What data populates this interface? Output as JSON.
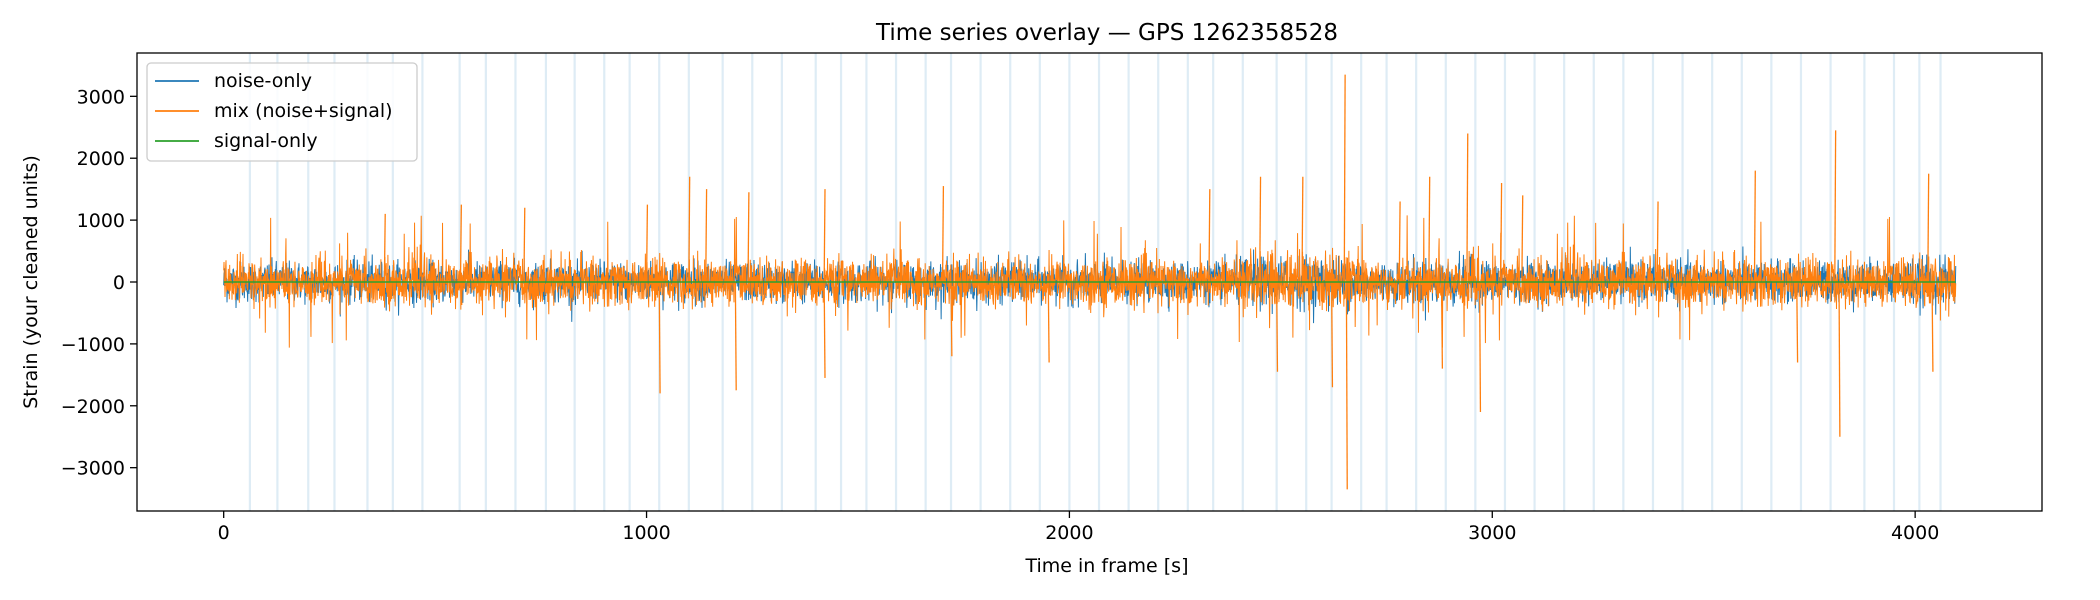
{
  "chart_data": {
    "type": "line",
    "title": "Time series overlay — GPS 1262358528",
    "xlabel": "Time in frame [s]",
    "ylabel": "Strain (your cleaned units)",
    "xlim": [
      -205,
      4300
    ],
    "ylim": [
      -3700,
      3700
    ],
    "xticks": [
      0,
      1000,
      2000,
      3000,
      4000
    ],
    "xtick_labels": [
      "0",
      "1000",
      "2000",
      "3000",
      "4000"
    ],
    "yticks": [
      -3000,
      -2000,
      -1000,
      0,
      1000,
      2000,
      3000
    ],
    "ytick_labels": [
      "−3000",
      "−2000",
      "−1000",
      "0",
      "1000",
      "2000",
      "3000"
    ],
    "grid": false,
    "legend_position": "upper-left",
    "x_range": [
      0,
      4096
    ],
    "series": [
      {
        "name": "noise-only",
        "color": "#1f77b4",
        "envelope_max": 500,
        "note_values": "dense random noise hidden under mix"
      },
      {
        "name": "mix (noise+signal)",
        "color": "#ff7f0e",
        "typical_amplitude": 450,
        "peaks": [
          {
            "x": 380,
            "y": 1100
          },
          {
            "x": 560,
            "y": 1250
          },
          {
            "x": 710,
            "y": 1200
          },
          {
            "x": 1000,
            "y": 1250
          },
          {
            "x": 1030,
            "y": -1800
          },
          {
            "x": 1100,
            "y": 1700
          },
          {
            "x": 1140,
            "y": 1500
          },
          {
            "x": 1210,
            "y": -1750
          },
          {
            "x": 1240,
            "y": 1450
          },
          {
            "x": 1420,
            "y": -1550
          },
          {
            "x": 1420,
            "y": 1500
          },
          {
            "x": 1700,
            "y": 1550
          },
          {
            "x": 1720,
            "y": -1200
          },
          {
            "x": 1950,
            "y": -1300
          },
          {
            "x": 2330,
            "y": 1500
          },
          {
            "x": 2450,
            "y": 1700
          },
          {
            "x": 2490,
            "y": -1450
          },
          {
            "x": 2550,
            "y": 1700
          },
          {
            "x": 2620,
            "y": -1700
          },
          {
            "x": 2650,
            "y": 3350
          },
          {
            "x": 2655,
            "y": -3350
          },
          {
            "x": 2780,
            "y": 1300
          },
          {
            "x": 2850,
            "y": 1700
          },
          {
            "x": 2880,
            "y": -1400
          },
          {
            "x": 2940,
            "y": 2400
          },
          {
            "x": 2970,
            "y": -2100
          },
          {
            "x": 3020,
            "y": 1600
          },
          {
            "x": 3070,
            "y": 1400
          },
          {
            "x": 3390,
            "y": 1300
          },
          {
            "x": 3620,
            "y": 1800
          },
          {
            "x": 3720,
            "y": -1300
          },
          {
            "x": 3810,
            "y": 2450
          },
          {
            "x": 3820,
            "y": -2500
          },
          {
            "x": 4030,
            "y": 1750
          },
          {
            "x": 4040,
            "y": -1450
          }
        ]
      },
      {
        "name": "signal-only",
        "color": "#2ca02c",
        "values_constant": 0
      }
    ],
    "vertical_bands": {
      "color": "#d6e7f2",
      "x": [
        62,
        127,
        200,
        262,
        340,
        400,
        470,
        558,
        620,
        690,
        762,
        830,
        900,
        960,
        1030,
        1100,
        1180,
        1250,
        1320,
        1400,
        1460,
        1520,
        1590,
        1660,
        1720,
        1790,
        1860,
        1930,
        2000,
        2070,
        2140,
        2210,
        2280,
        2340,
        2410,
        2490,
        2560,
        2620,
        2690,
        2750,
        2820,
        2890,
        2960,
        3030,
        3100,
        3170,
        3240,
        3310,
        3380,
        3450,
        3520,
        3590,
        3660,
        3730,
        3800,
        3880,
        3950,
        4010,
        4060
      ]
    }
  }
}
